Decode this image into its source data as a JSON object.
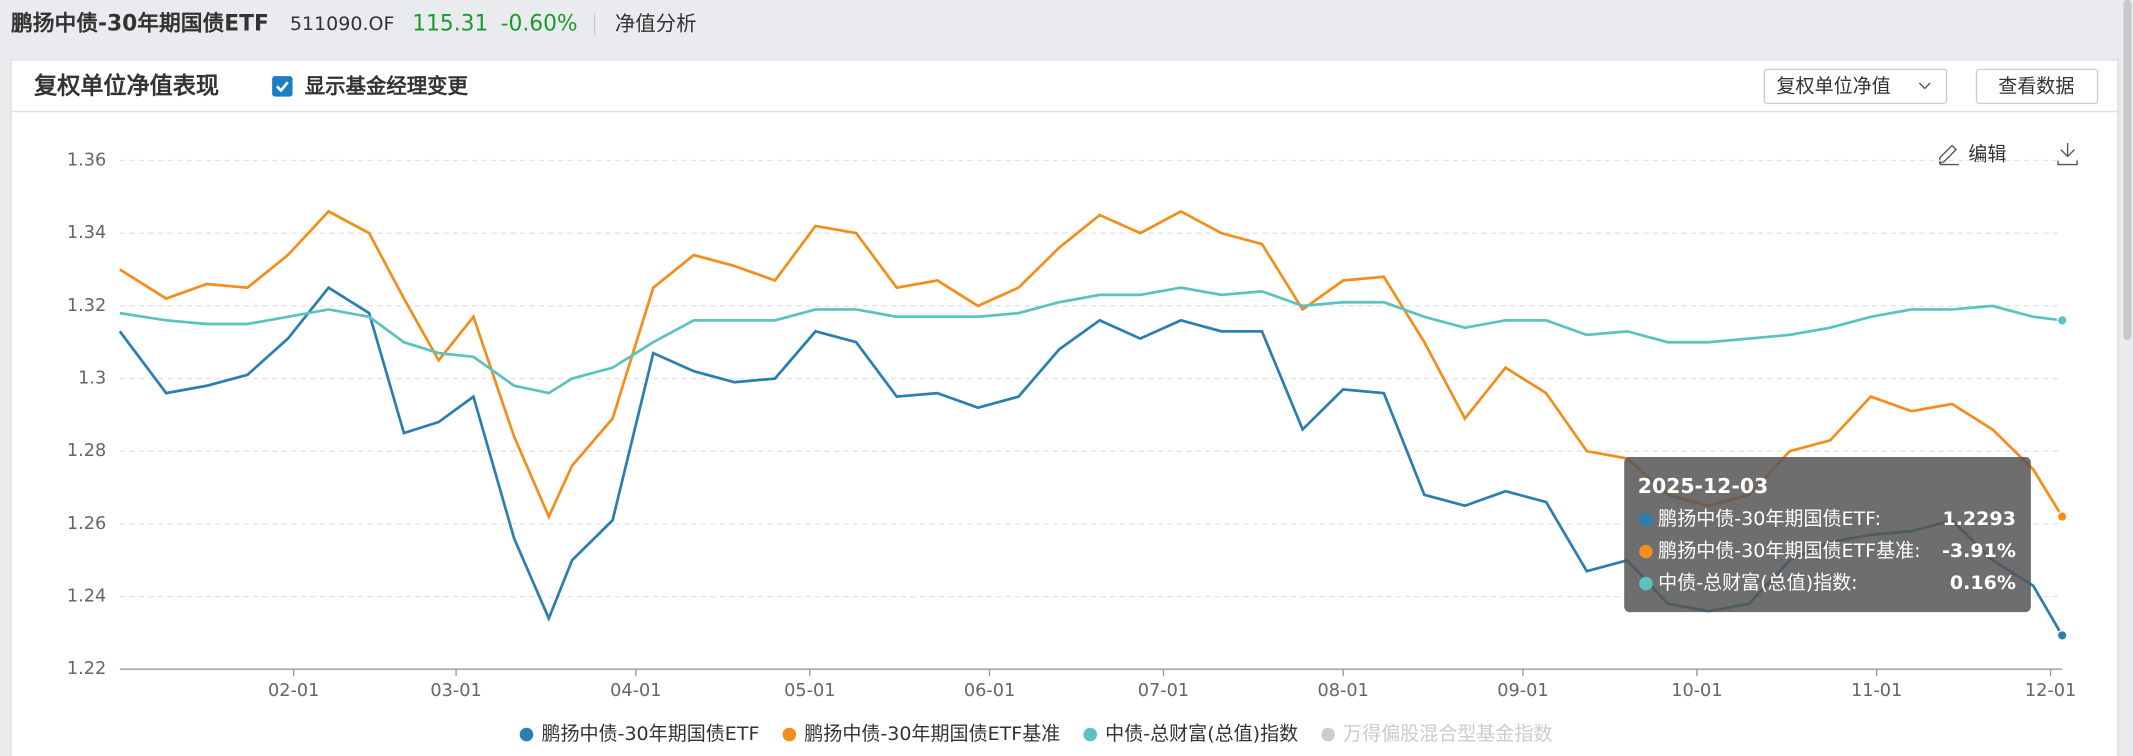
{
  "header": {
    "title": "鹏扬中债-30年期国债ETF",
    "code": "511090.OF",
    "price": "115.31",
    "change": "-0.60%",
    "tab": "净值分析"
  },
  "panel": {
    "title": "复权单位净值表现",
    "checkbox_label": "显示基金经理变更",
    "dropdown": "复权单位净值",
    "button": "查看数据",
    "edit": "编辑"
  },
  "tooltip": {
    "title": "2025-12-03",
    "rows": [
      {
        "label": "鹏扬中债-30年期国债ETF:",
        "value": "1.2293",
        "color": "#2b7fb0"
      },
      {
        "label": "鹏扬中债-30年期国债ETF基准:",
        "value": "-3.91%",
        "color": "#f28e1c"
      },
      {
        "label": "中债-总财富(总值)指数:",
        "value": "0.16%",
        "color": "#5bc2c1"
      }
    ]
  },
  "chart_data": {
    "type": "line",
    "x": [
      "01-02",
      "01-10",
      "01-17",
      "01-24",
      "01-31",
      "02-07",
      "02-14",
      "02-20",
      "02-26",
      "03-04",
      "03-11",
      "03-17",
      "03-21",
      "03-28",
      "04-04",
      "04-11",
      "04-18",
      "04-25",
      "05-02",
      "05-09",
      "05-16",
      "05-23",
      "05-30",
      "06-06",
      "06-13",
      "06-20",
      "06-27",
      "07-04",
      "07-11",
      "07-18",
      "07-25",
      "08-01",
      "08-08",
      "08-15",
      "08-22",
      "08-29",
      "09-05",
      "09-12",
      "09-19",
      "09-26",
      "10-03",
      "10-10",
      "10-17",
      "10-24",
      "10-31",
      "11-07",
      "11-14",
      "11-21",
      "11-28",
      "12-03"
    ],
    "series": [
      {
        "name": "鹏扬中债-30年期国债ETF",
        "color": "#2b7fb0",
        "values": [
          1.313,
          1.296,
          1.298,
          1.301,
          1.311,
          1.325,
          1.318,
          1.285,
          1.288,
          1.295,
          1.256,
          1.234,
          1.25,
          1.261,
          1.307,
          1.302,
          1.299,
          1.3,
          1.313,
          1.31,
          1.295,
          1.296,
          1.292,
          1.295,
          1.308,
          1.316,
          1.311,
          1.316,
          1.313,
          1.313,
          1.286,
          1.297,
          1.296,
          1.268,
          1.265,
          1.269,
          1.266,
          1.247,
          1.25,
          1.238,
          1.236,
          1.238,
          1.25,
          1.255,
          1.257,
          1.258,
          1.261,
          1.25,
          1.243,
          1.2293
        ]
      },
      {
        "name": "鹏扬中债-30年期国债ETF基准",
        "color": "#f28e1c",
        "values": [
          1.33,
          1.322,
          1.326,
          1.325,
          1.334,
          1.346,
          1.34,
          1.322,
          1.305,
          1.317,
          1.284,
          1.262,
          1.276,
          1.289,
          1.325,
          1.334,
          1.331,
          1.327,
          1.342,
          1.34,
          1.325,
          1.327,
          1.32,
          1.325,
          1.336,
          1.345,
          1.34,
          1.346,
          1.34,
          1.337,
          1.319,
          1.327,
          1.328,
          1.31,
          1.289,
          1.303,
          1.296,
          1.28,
          1.278,
          1.268,
          1.265,
          1.268,
          1.28,
          1.283,
          1.295,
          1.291,
          1.293,
          1.286,
          1.275,
          1.262
        ]
      },
      {
        "name": "中债-总财富(总值)指数",
        "color": "#5bc2c1",
        "values": [
          1.318,
          1.316,
          1.315,
          1.315,
          1.317,
          1.319,
          1.317,
          1.31,
          1.307,
          1.306,
          1.298,
          1.296,
          1.3,
          1.303,
          1.31,
          1.316,
          1.316,
          1.316,
          1.319,
          1.319,
          1.317,
          1.317,
          1.317,
          1.318,
          1.321,
          1.323,
          1.323,
          1.325,
          1.323,
          1.324,
          1.32,
          1.321,
          1.321,
          1.317,
          1.314,
          1.316,
          1.316,
          1.312,
          1.313,
          1.31,
          1.31,
          1.311,
          1.312,
          1.314,
          1.317,
          1.319,
          1.319,
          1.32,
          1.317,
          1.316
        ]
      }
    ],
    "hidden_legend": [
      {
        "name": "万得偏股混合型基金指数",
        "color": "#cccccc"
      }
    ],
    "ylim": [
      1.22,
      1.36
    ],
    "yticks": [
      1.22,
      1.24,
      1.26,
      1.28,
      1.3,
      1.32,
      1.34,
      1.36
    ],
    "xticks": [
      "02-01",
      "03-01",
      "04-01",
      "05-01",
      "06-01",
      "07-01",
      "08-01",
      "09-01",
      "10-01",
      "11-01",
      "12-01"
    ],
    "grid": true
  }
}
